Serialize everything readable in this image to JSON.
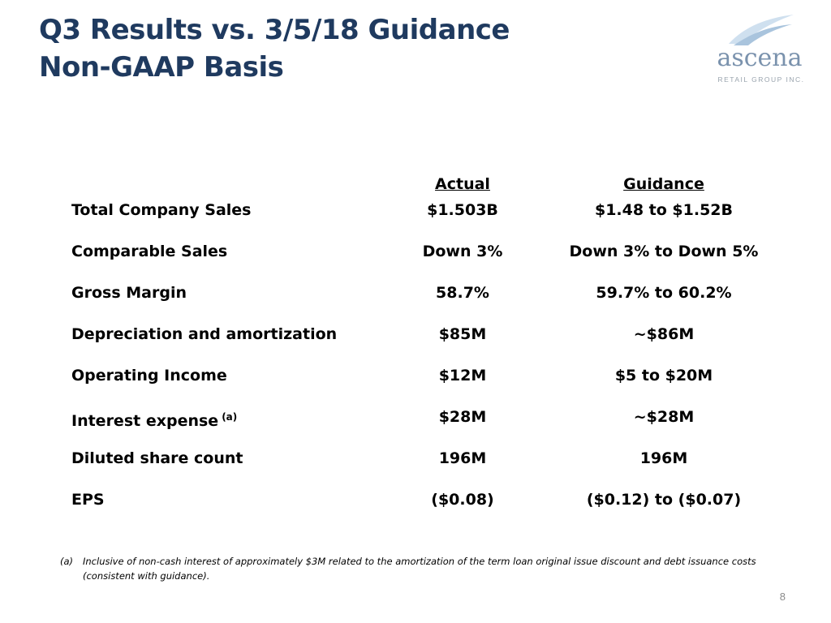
{
  "title": {
    "line1": "Q3 Results vs. 3/5/18 Guidance",
    "line2": "Non-GAAP Basis"
  },
  "logo": {
    "word": "ascena",
    "sub": "RETAIL GROUP INC.",
    "icon": "swoosh-logo-icon",
    "colors": {
      "swoosh_light": "#cfe0ef",
      "swoosh_mid": "#a9c4dd",
      "word": "#7a92ad"
    }
  },
  "table": {
    "headers": {
      "actual": "Actual",
      "guidance": "Guidance"
    },
    "rows": [
      {
        "label": "Total Company Sales",
        "actual": "$1.503B",
        "guidance": "$1.48 to $1.52B"
      },
      {
        "label": "Comparable Sales",
        "actual": "Down 3%",
        "guidance": "Down 3% to Down 5%"
      },
      {
        "label": "Gross Margin",
        "actual": "58.7%",
        "guidance": "59.7% to 60.2%"
      },
      {
        "label": "Depreciation and amortization",
        "actual": "$85M",
        "guidance": "~$86M"
      },
      {
        "label": "Operating Income",
        "actual": "$12M",
        "guidance": "$5 to $20M"
      },
      {
        "label": "Interest expense",
        "note": "(a)",
        "actual": "$28M",
        "guidance": "~$28M"
      },
      {
        "label": "Diluted share count",
        "actual": "196M",
        "guidance": "196M"
      },
      {
        "label": "EPS",
        "actual": "($0.08)",
        "guidance": "($0.12) to ($0.07)"
      }
    ]
  },
  "footnote": {
    "marker": "(a)",
    "text": "Inclusive of non-cash interest of approximately $3M related to the amortization of the term loan original issue discount and debt issuance costs (consistent with guidance)."
  },
  "page_number": "8",
  "colors": {
    "title": "#1f3a5f",
    "text": "#000000",
    "page_number": "#8a8a8a"
  }
}
